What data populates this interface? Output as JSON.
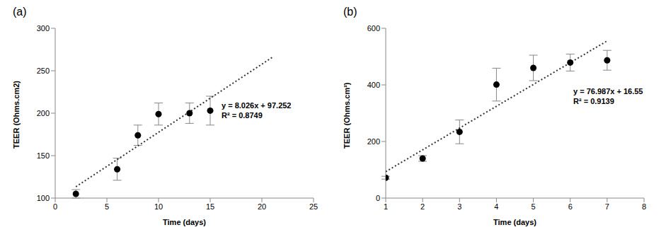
{
  "chart_data": [
    {
      "type": "scatter",
      "title": "(a)",
      "x_label": "Time (days)",
      "y_label": "TEER (Ohms.cm2)",
      "x": [
        2,
        6,
        8,
        10,
        13,
        15
      ],
      "values": [
        105,
        134,
        174,
        199,
        200,
        203
      ],
      "errors": [
        5,
        13,
        12,
        13,
        12,
        17
      ],
      "color": "#000000",
      "marker": "circle",
      "trendline": {
        "x": [
          2,
          21
        ],
        "values": [
          113.3,
          265.8
        ],
        "line_style": "dotted",
        "color": "#333333"
      },
      "annotations": [
        "y = 8.026x + 97.252",
        "R² = 0.8749"
      ],
      "xlim": [
        0,
        25
      ],
      "xticks": [
        0,
        5,
        10,
        15,
        20,
        25
      ],
      "ylim": [
        100,
        300
      ],
      "yticks": [
        100,
        150,
        200,
        250,
        300
      ],
      "grid": false
    },
    {
      "type": "scatter",
      "title": "(b)",
      "x_label": "Time (days)",
      "y_label": "TEER (Ohms.cm²)",
      "x": [
        1,
        2,
        3,
        4,
        5,
        6,
        7
      ],
      "values": [
        72,
        140,
        234,
        401,
        460,
        479,
        487
      ],
      "errors": [
        5,
        10,
        42,
        58,
        45,
        30,
        35
      ],
      "color": "#000000",
      "marker": "circle",
      "trendline": {
        "x": [
          1,
          7
        ],
        "values": [
          93.5,
          555.5
        ],
        "line_style": "dotted",
        "color": "#333333"
      },
      "annotations": [
        "y = 76.987x + 16.55",
        "R² = 0.9139"
      ],
      "xlim": [
        1,
        8
      ],
      "xticks": [
        1,
        2,
        3,
        4,
        5,
        6,
        7,
        8
      ],
      "ylim": [
        0,
        600
      ],
      "yticks": [
        0,
        200,
        400,
        600
      ],
      "grid": false
    }
  ]
}
